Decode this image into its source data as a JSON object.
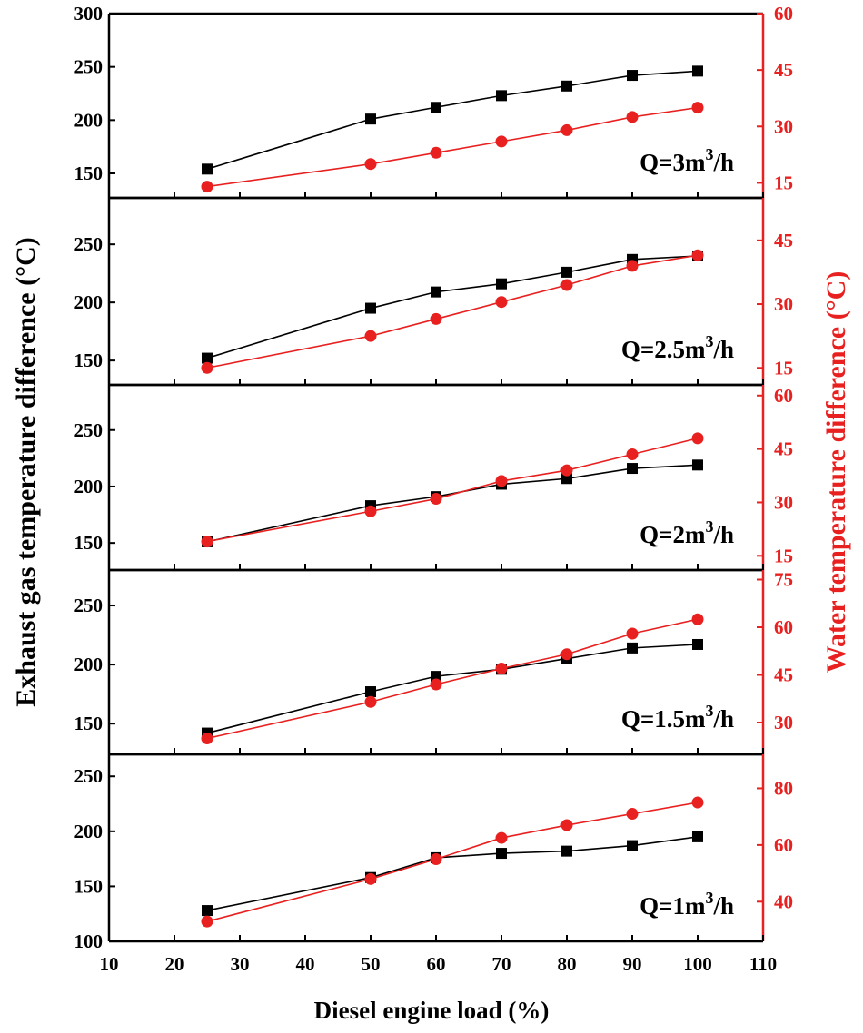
{
  "chart_data": {
    "type": "line",
    "xlabel": "Diesel engine load (%)",
    "ylabel_left": "Exhaust gas temperature difference (°C)",
    "ylabel_right": "Water temperature difference (°C)",
    "x_ticks": [
      10,
      20,
      30,
      40,
      50,
      60,
      70,
      80,
      90,
      100,
      110
    ],
    "xlim": [
      10,
      110
    ],
    "colors": {
      "exhaust": "#000000",
      "water": "#e8201f"
    },
    "x": [
      25,
      50,
      60,
      70,
      80,
      90,
      100
    ],
    "panels": [
      {
        "label_prefix": "Q=3m",
        "label_sup": "3",
        "label_suffix": "/h",
        "ylim_left": [
          127,
          300
        ],
        "left_ticks": [
          150,
          200,
          250,
          300
        ],
        "ylim_right": [
          11,
          60
        ],
        "right_ticks": [
          15,
          30,
          45,
          60
        ],
        "series": [
          {
            "name": "Exhaust gas temperature difference",
            "axis": "left",
            "marker": "square",
            "values": [
              154,
              201,
              212,
              223,
              232,
              242,
              246
            ]
          },
          {
            "name": "Water temperature difference",
            "axis": "right",
            "marker": "circle",
            "values": [
              14,
              20,
              23,
              26,
              29,
              32.5,
              35
            ]
          }
        ]
      },
      {
        "label_prefix": "Q=2.5m",
        "label_sup": "3",
        "label_suffix": "/h",
        "ylim_left": [
          129,
          290
        ],
        "left_ticks": [
          150,
          200,
          250
        ],
        "ylim_right": [
          11,
          55
        ],
        "right_ticks": [
          15,
          30,
          45
        ],
        "series": [
          {
            "name": "Exhaust gas temperature difference",
            "axis": "left",
            "marker": "square",
            "values": [
              152,
              195,
              209,
              216,
              226,
              237,
              240
            ]
          },
          {
            "name": "Water temperature difference",
            "axis": "right",
            "marker": "circle",
            "values": [
              15,
              22.5,
              26.5,
              30.5,
              34.5,
              39,
              41.5
            ]
          }
        ]
      },
      {
        "label_prefix": "Q=2m",
        "label_sup": "3",
        "label_suffix": "/h",
        "ylim_left": [
          126,
          290
        ],
        "left_ticks": [
          150,
          200,
          250
        ],
        "ylim_right": [
          11,
          63
        ],
        "right_ticks": [
          15,
          30,
          45,
          60
        ],
        "series": [
          {
            "name": "Exhaust gas temperature difference",
            "axis": "left",
            "marker": "square",
            "values": [
              151,
              183,
              191,
              202,
              207,
              216,
              219
            ]
          },
          {
            "name": "Water temperature difference",
            "axis": "right",
            "marker": "circle",
            "values": [
              19,
              27.5,
              31,
              36,
              39,
              43.5,
              48
            ]
          }
        ]
      },
      {
        "label_prefix": "Q=1.5m",
        "label_sup": "3",
        "label_suffix": "/h",
        "ylim_left": [
          124,
          280
        ],
        "left_ticks": [
          150,
          200,
          250
        ],
        "ylim_right": [
          20,
          78
        ],
        "right_ticks": [
          30,
          45,
          60,
          75
        ],
        "series": [
          {
            "name": "Exhaust gas temperature difference",
            "axis": "left",
            "marker": "square",
            "values": [
              142,
              177,
              190,
              196,
              205,
              214,
              217
            ]
          },
          {
            "name": "Water temperature difference",
            "axis": "right",
            "marker": "circle",
            "values": [
              25,
              36.5,
              42,
              47,
              51.5,
              58,
              62.5
            ]
          }
        ]
      },
      {
        "label_prefix": "Q=1m",
        "label_sup": "3",
        "label_suffix": "/h",
        "ylim_left": [
          100,
          270
        ],
        "left_ticks": [
          100,
          150,
          200,
          250
        ],
        "ylim_right": [
          26,
          92
        ],
        "right_ticks": [
          40,
          60,
          80
        ],
        "series": [
          {
            "name": "Exhaust gas temperature difference",
            "axis": "left",
            "marker": "square",
            "values": [
              128,
              158,
              176,
              180,
              182,
              187,
              195
            ]
          },
          {
            "name": "Water temperature difference",
            "axis": "right",
            "marker": "circle",
            "values": [
              33,
              48,
              55,
              62.5,
              67,
              71,
              75
            ]
          }
        ]
      }
    ]
  }
}
